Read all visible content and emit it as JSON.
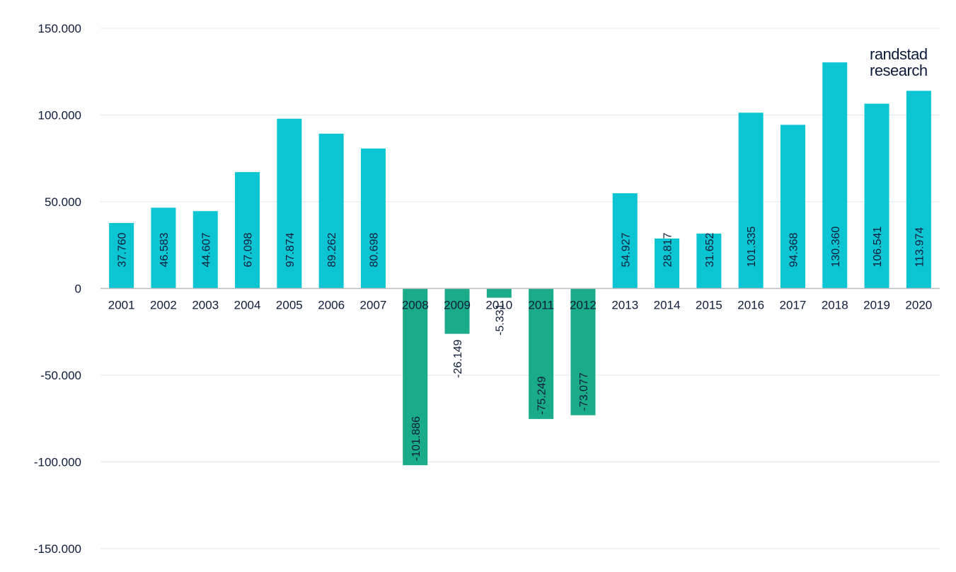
{
  "brand": {
    "line1": "randstad",
    "line2": "research"
  },
  "colors": {
    "positive": "#0bc5d3",
    "negative": "#1aac88",
    "text": "#0e1c3a",
    "grid": "#e2e5e9"
  },
  "chart_data": {
    "type": "bar",
    "title": "",
    "xlabel": "",
    "ylabel": "",
    "ylim": [
      -150000,
      150000
    ],
    "yticks": [
      150000,
      100000,
      50000,
      0,
      -50000,
      -100000,
      -150000
    ],
    "ytick_labels": [
      "150.000",
      "100.000",
      "50.000",
      "0",
      "-50.000",
      "-100.000",
      "-150.000"
    ],
    "grid": true,
    "categories": [
      "2001",
      "2002",
      "2003",
      "2004",
      "2005",
      "2006",
      "2007",
      "2008",
      "2009",
      "2010",
      "2011",
      "2012",
      "2013",
      "2014",
      "2015",
      "2016",
      "2017",
      "2018",
      "2019",
      "2020"
    ],
    "values": [
      37760,
      46583,
      44607,
      67098,
      97874,
      89262,
      80698,
      -101886,
      -26149,
      -5331,
      -75249,
      -73077,
      54927,
      28817,
      31652,
      101335,
      94368,
      130360,
      106541,
      113974
    ],
    "labels": [
      "37.760",
      "46.583",
      "44.607",
      "67.098",
      "97.874",
      "89.262",
      "80.698",
      "-101.886",
      "-26.149",
      "-5.331",
      "-75.249",
      "-73.077",
      "54.927",
      "28.817",
      "31.652",
      "101.335",
      "94.368",
      "130.360",
      "106.541",
      "113.974"
    ]
  }
}
